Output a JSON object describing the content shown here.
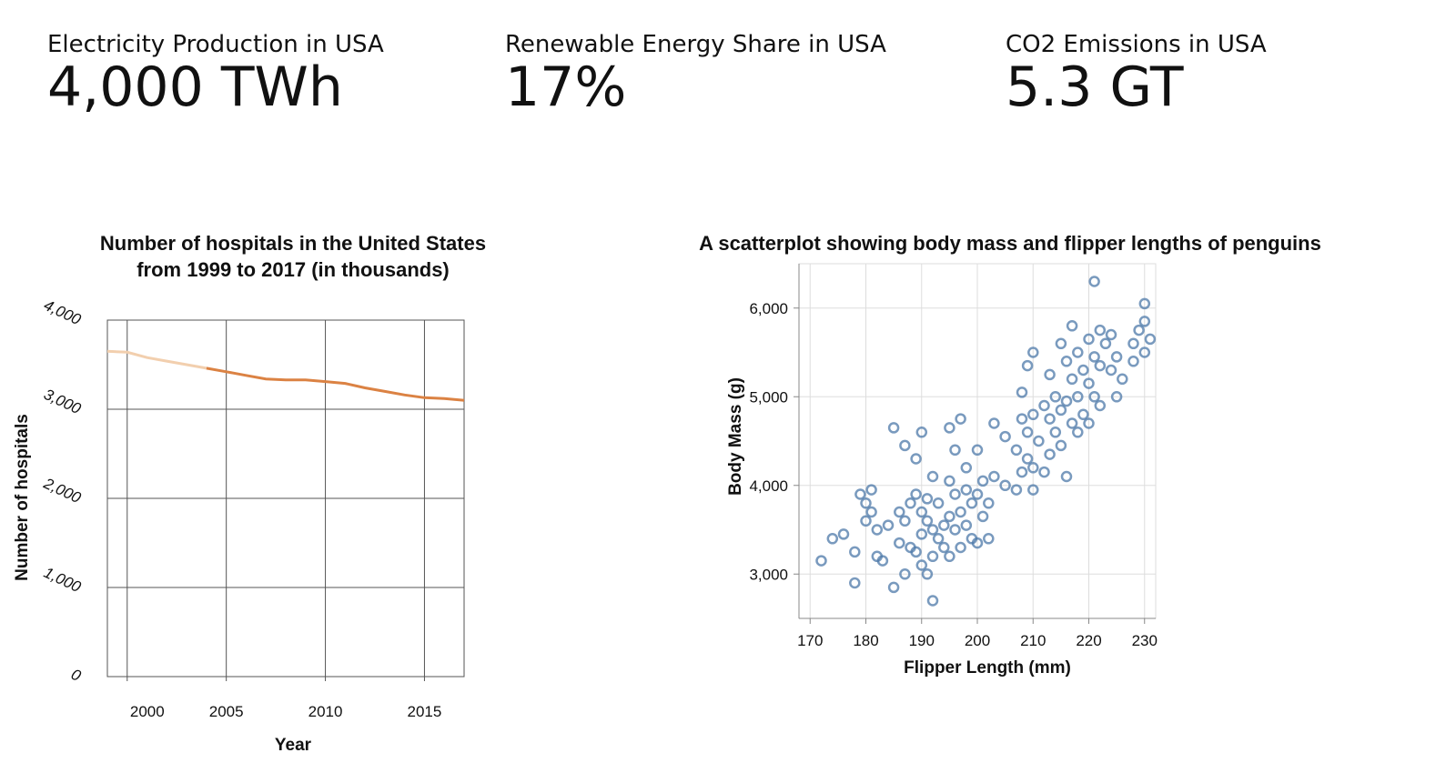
{
  "kpis": [
    {
      "label": "Electricity Production in USA",
      "value": "4,000 TWh"
    },
    {
      "label": "Renewable Energy Share in USA",
      "value": "17%"
    },
    {
      "label": "CO2 Emissions in USA",
      "value": "5.3 GT"
    }
  ],
  "chart_data": [
    {
      "type": "line",
      "title": [
        "Number of hospitals in the United States",
        "from 1999 to 2017 (in thousands)"
      ],
      "xlabel": "Year",
      "ylabel": "Number of hospitals",
      "xlim": [
        1999,
        2017
      ],
      "ylim": [
        0,
        4000
      ],
      "x_ticks": [
        2000,
        2005,
        2010,
        2015
      ],
      "x_tick_labels": [
        "2000",
        "2005",
        "2010",
        "2015"
      ],
      "y_ticks": [
        0,
        1000,
        2000,
        3000,
        4000
      ],
      "y_tick_labels": [
        "0",
        "1,000",
        "2,000",
        "3,000",
        "4,000"
      ],
      "grid": true,
      "series": [
        {
          "color_light": "#f2cfae",
          "color": "#db8243",
          "highlight_from": 2004,
          "x": [
            1999,
            2000,
            2001,
            2002,
            2003,
            2004,
            2005,
            2006,
            2007,
            2008,
            2009,
            2010,
            2011,
            2012,
            2013,
            2014,
            2015,
            2016,
            2017
          ],
          "y": [
            3650,
            3640,
            3580,
            3540,
            3500,
            3460,
            3420,
            3380,
            3340,
            3330,
            3330,
            3310,
            3290,
            3240,
            3200,
            3160,
            3130,
            3120,
            3100
          ]
        }
      ]
    },
    {
      "type": "scatter",
      "title": "A scatterplot showing body mass and flipper lengths of penguins",
      "xlabel": "Flipper Length (mm)",
      "ylabel": "Body Mass (g)",
      "xlim": [
        168,
        232
      ],
      "ylim": [
        2500,
        6500
      ],
      "x_ticks": [
        170,
        180,
        190,
        200,
        210,
        220,
        230
      ],
      "x_tick_labels": [
        "170",
        "180",
        "190",
        "200",
        "210",
        "220",
        "230"
      ],
      "y_ticks": [
        3000,
        4000,
        5000,
        6000
      ],
      "y_tick_labels": [
        "3,000",
        "4,000",
        "5,000",
        "6,000"
      ],
      "grid": true,
      "color": "#4c78a8",
      "points": [
        [
          172,
          3150
        ],
        [
          174,
          3400
        ],
        [
          176,
          3450
        ],
        [
          178,
          2900
        ],
        [
          178,
          3250
        ],
        [
          179,
          3900
        ],
        [
          180,
          3600
        ],
        [
          180,
          3800
        ],
        [
          181,
          3950
        ],
        [
          181,
          3700
        ],
        [
          182,
          3200
        ],
        [
          182,
          3500
        ],
        [
          183,
          3150
        ],
        [
          184,
          3550
        ],
        [
          185,
          2850
        ],
        [
          185,
          4650
        ],
        [
          186,
          3350
        ],
        [
          186,
          3700
        ],
        [
          187,
          3000
        ],
        [
          187,
          3600
        ],
        [
          187,
          4450
        ],
        [
          188,
          3300
        ],
        [
          188,
          3800
        ],
        [
          189,
          3250
        ],
        [
          189,
          4300
        ],
        [
          189,
          3900
        ],
        [
          190,
          3100
        ],
        [
          190,
          3450
        ],
        [
          190,
          3700
        ],
        [
          190,
          4600
        ],
        [
          191,
          3000
        ],
        [
          191,
          3600
        ],
        [
          191,
          3850
        ],
        [
          192,
          2700
        ],
        [
          192,
          3200
        ],
        [
          192,
          3500
        ],
        [
          192,
          4100
        ],
        [
          193,
          3400
        ],
        [
          193,
          3800
        ],
        [
          194,
          3300
        ],
        [
          194,
          3550
        ],
        [
          195,
          3200
        ],
        [
          195,
          3650
        ],
        [
          195,
          4050
        ],
        [
          195,
          4650
        ],
        [
          196,
          3500
        ],
        [
          196,
          3900
        ],
        [
          196,
          4400
        ],
        [
          197,
          3300
        ],
        [
          197,
          3700
        ],
        [
          197,
          4750
        ],
        [
          198,
          3550
        ],
        [
          198,
          3950
        ],
        [
          198,
          4200
        ],
        [
          199,
          3400
        ],
        [
          199,
          3800
        ],
        [
          200,
          3350
        ],
        [
          200,
          3900
        ],
        [
          200,
          4400
        ],
        [
          201,
          3650
        ],
        [
          201,
          4050
        ],
        [
          202,
          3400
        ],
        [
          202,
          3800
        ],
        [
          203,
          4100
        ],
        [
          203,
          4700
        ],
        [
          205,
          4000
        ],
        [
          205,
          4550
        ],
        [
          207,
          3950
        ],
        [
          207,
          4400
        ],
        [
          208,
          4150
        ],
        [
          208,
          4750
        ],
        [
          208,
          5050
        ],
        [
          209,
          4300
        ],
        [
          209,
          4600
        ],
        [
          209,
          5350
        ],
        [
          210,
          3950
        ],
        [
          210,
          4200
        ],
        [
          210,
          4800
        ],
        [
          210,
          5500
        ],
        [
          211,
          4500
        ],
        [
          212,
          4150
        ],
        [
          212,
          4900
        ],
        [
          213,
          4350
        ],
        [
          213,
          4750
        ],
        [
          213,
          5250
        ],
        [
          214,
          4600
        ],
        [
          214,
          5000
        ],
        [
          215,
          4450
        ],
        [
          215,
          4850
        ],
        [
          215,
          5600
        ],
        [
          216,
          4100
        ],
        [
          216,
          4950
        ],
        [
          216,
          5400
        ],
        [
          217,
          4700
        ],
        [
          217,
          5200
        ],
        [
          217,
          5800
        ],
        [
          218,
          4600
        ],
        [
          218,
          5000
        ],
        [
          218,
          5500
        ],
        [
          219,
          4800
        ],
        [
          219,
          5300
        ],
        [
          220,
          4700
        ],
        [
          220,
          5150
        ],
        [
          220,
          5650
        ],
        [
          221,
          5000
        ],
        [
          221,
          5450
        ],
        [
          221,
          6300
        ],
        [
          222,
          4900
        ],
        [
          222,
          5350
        ],
        [
          222,
          5750
        ],
        [
          223,
          5600
        ],
        [
          224,
          5300
        ],
        [
          224,
          5700
        ],
        [
          225,
          5000
        ],
        [
          225,
          5450
        ],
        [
          226,
          5200
        ],
        [
          228,
          5400
        ],
        [
          228,
          5600
        ],
        [
          229,
          5750
        ],
        [
          230,
          5500
        ],
        [
          230,
          6050
        ],
        [
          230,
          5850
        ],
        [
          231,
          5650
        ]
      ]
    }
  ]
}
